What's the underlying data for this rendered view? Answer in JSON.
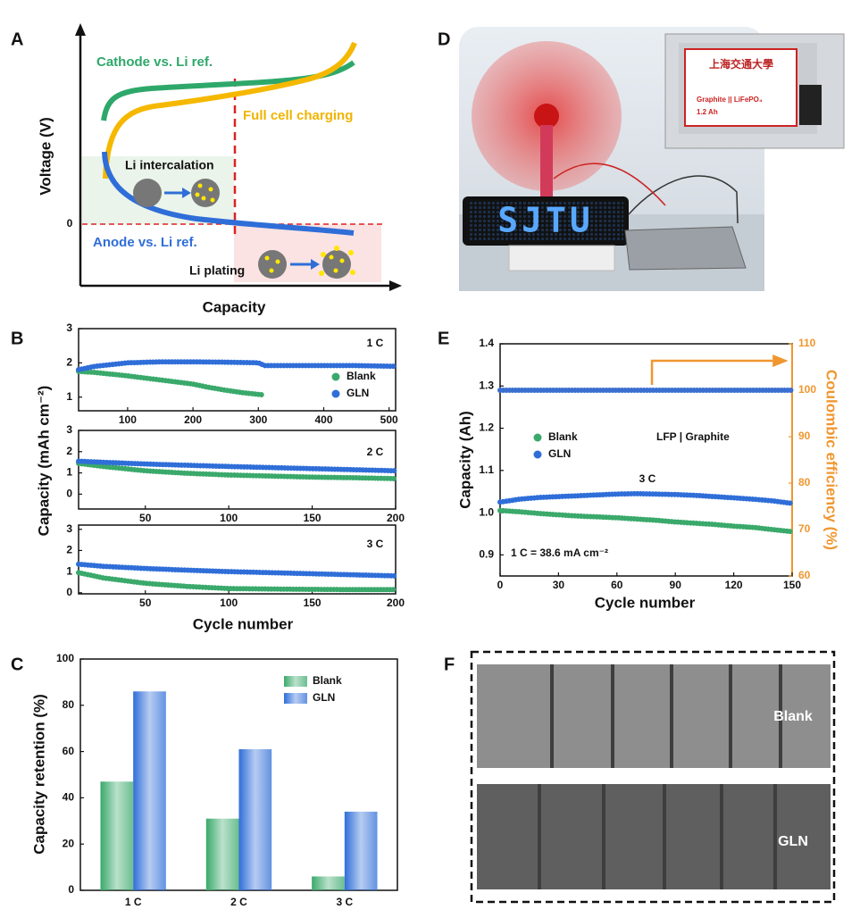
{
  "panel_labels": [
    "A",
    "B",
    "C",
    "D",
    "E",
    "F"
  ],
  "schematic": {
    "y_label": "Voltage (V)",
    "x_label": "Capacity",
    "zero_label": "0",
    "texts": [
      "Cathode vs. Li ref.",
      "Full cell charging",
      "Li intercalation",
      "Anode vs. Li ref.",
      "Li plating"
    ]
  },
  "photo_d": {
    "screen_text": "SJTU",
    "badge_text": "上海交通大學",
    "cell_label": "Graphite || LiFePO₄",
    "cell_capacity": "1.2 Ah"
  },
  "photo_f": {
    "labels": [
      "Blank",
      "GLN"
    ]
  },
  "chart_data": [
    {
      "type": "line",
      "xlim": [
        25,
        510
      ],
      "xticks": [
        100,
        200,
        300,
        400,
        500
      ],
      "ylim": [
        0.6,
        3
      ],
      "yticks": [
        1,
        2,
        3
      ],
      "annotations": [
        "1 C"
      ],
      "legend": "lower right",
      "series": [
        {
          "name": "Blank",
          "color": "#3aa96b",
          "x": [
            25,
            50,
            100,
            150,
            200,
            220,
            250,
            280,
            305
          ],
          "values": [
            1.75,
            1.72,
            1.62,
            1.5,
            1.38,
            1.3,
            1.2,
            1.12,
            1.07
          ]
        },
        {
          "name": "GLN",
          "color": "#2f6ed8",
          "x": [
            25,
            50,
            100,
            150,
            200,
            250,
            300,
            310,
            350,
            400,
            450,
            510
          ],
          "values": [
            1.8,
            1.9,
            2.0,
            2.03,
            2.03,
            2.02,
            2.0,
            1.92,
            1.92,
            1.92,
            1.92,
            1.9
          ]
        }
      ]
    },
    {
      "type": "line",
      "xlim": [
        10,
        200
      ],
      "xticks": [
        50,
        100,
        150,
        200
      ],
      "ylim": [
        -0.7,
        3
      ],
      "yticks": [
        0,
        1,
        2,
        3
      ],
      "annotations": [
        "2 C"
      ],
      "y_label": "Capacity (mAh cm⁻²)",
      "series": [
        {
          "color": "#3aa96b",
          "x": [
            10,
            25,
            50,
            75,
            100,
            125,
            150,
            175,
            200
          ],
          "values": [
            1.45,
            1.3,
            1.1,
            0.98,
            0.9,
            0.85,
            0.8,
            0.77,
            0.73
          ]
        },
        {
          "color": "#2f6ed8",
          "x": [
            10,
            25,
            50,
            75,
            100,
            125,
            150,
            175,
            200
          ],
          "values": [
            1.55,
            1.5,
            1.42,
            1.36,
            1.3,
            1.25,
            1.2,
            1.15,
            1.1
          ]
        }
      ]
    },
    {
      "type": "line",
      "xlim": [
        10,
        200
      ],
      "xticks": [
        50,
        100,
        150,
        200
      ],
      "ylim": [
        -0.05,
        3.2
      ],
      "yticks": [
        0,
        1,
        2,
        3
      ],
      "annotations": [
        "3 C"
      ],
      "x_label": "Cycle number",
      "series": [
        {
          "color": "#3aa96b",
          "x": [
            10,
            25,
            50,
            75,
            100,
            125,
            150,
            175,
            200
          ],
          "values": [
            0.95,
            0.7,
            0.45,
            0.3,
            0.2,
            0.18,
            0.16,
            0.15,
            0.15
          ]
        },
        {
          "color": "#2f6ed8",
          "x": [
            10,
            25,
            50,
            75,
            100,
            125,
            150,
            175,
            200
          ],
          "values": [
            1.35,
            1.25,
            1.15,
            1.07,
            1.0,
            0.95,
            0.9,
            0.85,
            0.8
          ]
        }
      ]
    },
    {
      "type": "bar",
      "categories": [
        "1 C",
        "2 C",
        "3 C"
      ],
      "ylim": [
        0,
        100
      ],
      "yticks": [
        0,
        20,
        40,
        60,
        80,
        100
      ],
      "y_label": "Capacity retention (%)",
      "legend": "upper right",
      "series": [
        {
          "name": "Blank",
          "color": "#3aa96b",
          "values": [
            47,
            31,
            6
          ]
        },
        {
          "name": "GLN",
          "color": "#2f6ed8",
          "values": [
            86,
            61,
            34
          ]
        }
      ]
    },
    {
      "type": "line",
      "xlim": [
        0,
        150
      ],
      "xticks": [
        0,
        30,
        60,
        90,
        120,
        150
      ],
      "ylim": [
        0.85,
        1.4
      ],
      "yticks": [
        0.9,
        {
          "value": 1,
          "label": "1.0"
        },
        1.1,
        1.2,
        1.3,
        1.4
      ],
      "y2lim": [
        60,
        110
      ],
      "y2ticks": [
        60,
        70,
        80,
        90,
        100,
        110
      ],
      "y2color": "#f0962f",
      "x_label": "Cycle number",
      "y_label": "Capacity (Ah)",
      "y2_label": "Coulombic efficiency (%)",
      "annotations": [
        "LFP | Graphite",
        "3 C",
        "1 C = 38.6 mA cm⁻²"
      ],
      "legend": "center left",
      "series": [
        {
          "name": "Blank",
          "color": "#3aa96b",
          "x": [
            0,
            10,
            20,
            30,
            40,
            50,
            60,
            70,
            80,
            90,
            100,
            110,
            120,
            130,
            140,
            150
          ],
          "values": [
            1.005,
            1.002,
            0.998,
            0.995,
            0.992,
            0.99,
            0.988,
            0.985,
            0.982,
            0.978,
            0.975,
            0.972,
            0.968,
            0.965,
            0.96,
            0.955
          ]
        },
        {
          "name": "GLN",
          "color": "#2f6ed8",
          "x": [
            0,
            10,
            20,
            30,
            40,
            50,
            60,
            70,
            80,
            90,
            100,
            110,
            120,
            130,
            140,
            150
          ],
          "values": [
            1.025,
            1.032,
            1.036,
            1.038,
            1.04,
            1.042,
            1.044,
            1.045,
            1.044,
            1.043,
            1.041,
            1.038,
            1.035,
            1.032,
            1.028,
            1.022
          ]
        },
        {
          "axis": "y2",
          "color": "#3a6fd0",
          "x": [
            0,
            10,
            20,
            30,
            40,
            50,
            60,
            70,
            80,
            90,
            100,
            110,
            120,
            130,
            140,
            150
          ],
          "values": [
            100,
            100,
            100,
            100,
            100,
            100,
            100,
            100,
            100,
            100,
            100,
            100,
            100,
            100,
            100,
            100
          ]
        }
      ]
    }
  ]
}
